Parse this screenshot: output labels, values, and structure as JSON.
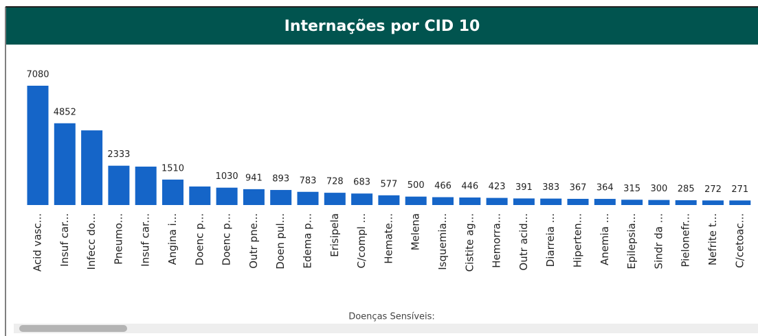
{
  "chart_data": {
    "type": "bar",
    "title": "Internações por CID 10",
    "x_label": "Doenças Sensíveis:",
    "color": "#1565c8",
    "categories": [
      "Acid vasc...",
      "Insuf car...",
      "Infecc do...",
      "Pneumo...",
      "Insuf car...",
      "Angina i...",
      "Doenc p...",
      "Doenc p...",
      "Outr pne...",
      "Doen pul...",
      "Edema p...",
      "Erisipela",
      "C/compl ...",
      "Hemate...",
      "Melena",
      "Isquemia...",
      "Cistite ag...",
      "Hemorra...",
      "Outr acid...",
      "Diarreia ...",
      "Hiperten...",
      "Anemia ...",
      "Epilepsia...",
      "Sindr da ...",
      "Pielonefr...",
      "Nefrite t...",
      "C/cetoac..."
    ],
    "values": [
      7080,
      4852,
      4430,
      2333,
      2280,
      1510,
      1100,
      1030,
      941,
      893,
      783,
      728,
      683,
      577,
      500,
      466,
      446,
      423,
      391,
      383,
      367,
      364,
      315,
      300,
      285,
      272,
      271
    ],
    "value_labels": [
      "7080",
      "4852",
      null,
      "2333",
      null,
      "1510",
      null,
      "1030",
      "941",
      "893",
      "783",
      "728",
      "683",
      "577",
      "500",
      "466",
      "446",
      "423",
      "391",
      "383",
      "367",
      "364",
      "315",
      "300",
      "285",
      "272",
      "271"
    ]
  }
}
